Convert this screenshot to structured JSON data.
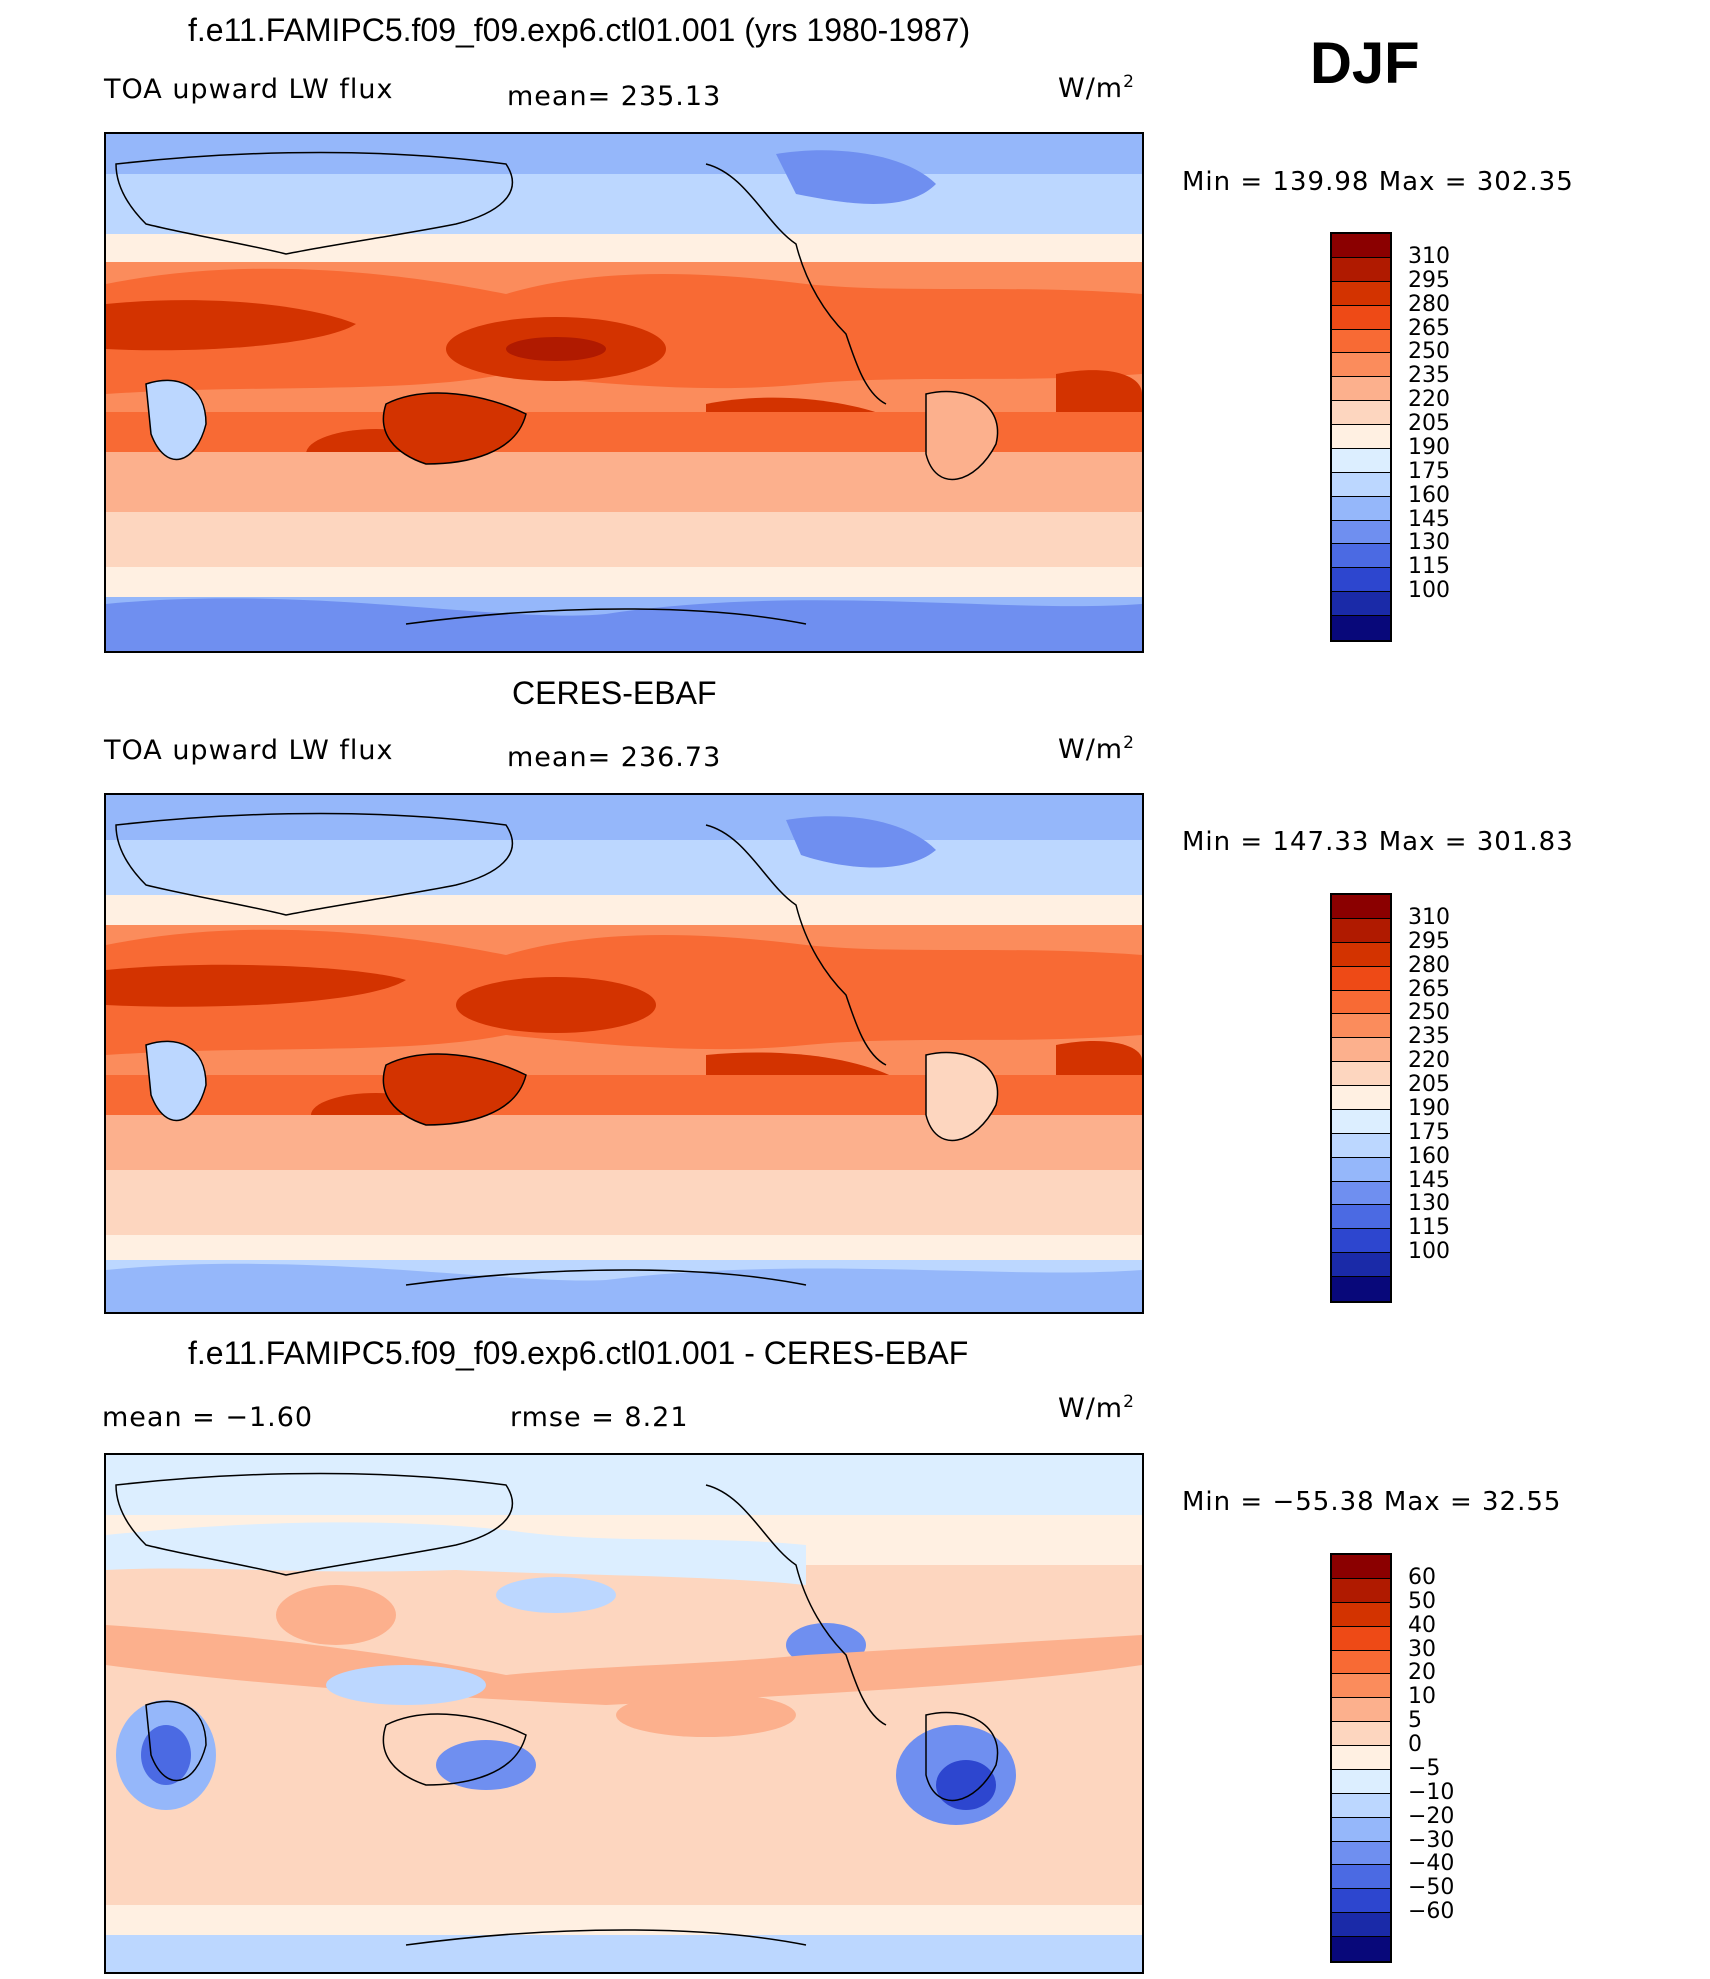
{
  "season": "DJF",
  "units_base": "W/m",
  "units_exp": "2",
  "panels": [
    {
      "title": "f.e11.FAMIPC5.f09_f09.exp6.ctl01.001 (yrs 1980-1987)",
      "left_label": "TOA upward LW flux",
      "center_label": "mean= 235.13",
      "minmax": "Min  =  139.98  Max  =  302.35"
    },
    {
      "title": "CERES-EBAF",
      "left_label": "TOA upward LW flux",
      "center_label": "mean= 236.73",
      "minmax": "Min  =  147.33  Max  =  301.83"
    },
    {
      "title": "f.e11.FAMIPC5.f09_f09.exp6.ctl01.001 - CERES-EBAF",
      "left_label": "mean =   −1.60",
      "center_label": "rmse =     8.21",
      "minmax": "Min  =  −55.38  Max  =    32.55"
    }
  ],
  "colorbars": [
    {
      "labels": [
        "310",
        "295",
        "280",
        "265",
        "250",
        "235",
        "220",
        "205",
        "190",
        "175",
        "160",
        "145",
        "130",
        "115",
        "100"
      ],
      "colors": [
        "#8b0000",
        "#b01a00",
        "#d33300",
        "#ee4a16",
        "#f86a34",
        "#fb8c5c",
        "#fcb08d",
        "#fdd6bf",
        "#fff0e2",
        "#dceeff",
        "#bcd7ff",
        "#95b7fa",
        "#6f8ff0",
        "#4b6ae3",
        "#2d46cf",
        "#1a2aa8",
        "#08087a"
      ]
    },
    {
      "labels": [
        "310",
        "295",
        "280",
        "265",
        "250",
        "235",
        "220",
        "205",
        "190",
        "175",
        "160",
        "145",
        "130",
        "115",
        "100"
      ],
      "colors": [
        "#8b0000",
        "#b01a00",
        "#d33300",
        "#ee4a16",
        "#f86a34",
        "#fb8c5c",
        "#fcb08d",
        "#fdd6bf",
        "#fff0e2",
        "#dceeff",
        "#bcd7ff",
        "#95b7fa",
        "#6f8ff0",
        "#4b6ae3",
        "#2d46cf",
        "#1a2aa8",
        "#08087a"
      ]
    },
    {
      "labels": [
        "60",
        "50",
        "40",
        "30",
        "20",
        "10",
        "5",
        "0",
        "−5",
        "−10",
        "−20",
        "−30",
        "−40",
        "−50",
        "−60"
      ],
      "colors": [
        "#8b0000",
        "#b01a00",
        "#d33300",
        "#ee4a16",
        "#f86a34",
        "#fb8c5c",
        "#fcb08d",
        "#fdd6bf",
        "#fff0e2",
        "#dceeff",
        "#bcd7ff",
        "#95b7fa",
        "#6f8ff0",
        "#4b6ae3",
        "#2d46cf",
        "#1a2aa8",
        "#08087a"
      ]
    }
  ],
  "chart_data": [
    {
      "type": "heatmap",
      "title": "f.e11.FAMIPC5.f09_f09.exp6.ctl01.001 (yrs 1980-1987)",
      "variable": "TOA upward LW flux",
      "units": "W/m2",
      "season": "DJF",
      "mean": 235.13,
      "min": 139.98,
      "max": 302.35,
      "contour_levels": [
        100,
        115,
        130,
        145,
        160,
        175,
        190,
        205,
        220,
        235,
        250,
        265,
        280,
        295,
        310
      ]
    },
    {
      "type": "heatmap",
      "title": "CERES-EBAF",
      "variable": "TOA upward LW flux",
      "units": "W/m2",
      "season": "DJF",
      "mean": 236.73,
      "min": 147.33,
      "max": 301.83,
      "contour_levels": [
        100,
        115,
        130,
        145,
        160,
        175,
        190,
        205,
        220,
        235,
        250,
        265,
        280,
        295,
        310
      ]
    },
    {
      "type": "heatmap",
      "title": "f.e11.FAMIPC5.f09_f09.exp6.ctl01.001 - CERES-EBAF",
      "units": "W/m2",
      "season": "DJF",
      "mean": -1.6,
      "rmse": 8.21,
      "min": -55.38,
      "max": 32.55,
      "contour_levels": [
        -60,
        -50,
        -40,
        -30,
        -20,
        -10,
        -5,
        0,
        5,
        10,
        20,
        30,
        40,
        50,
        60
      ]
    }
  ]
}
